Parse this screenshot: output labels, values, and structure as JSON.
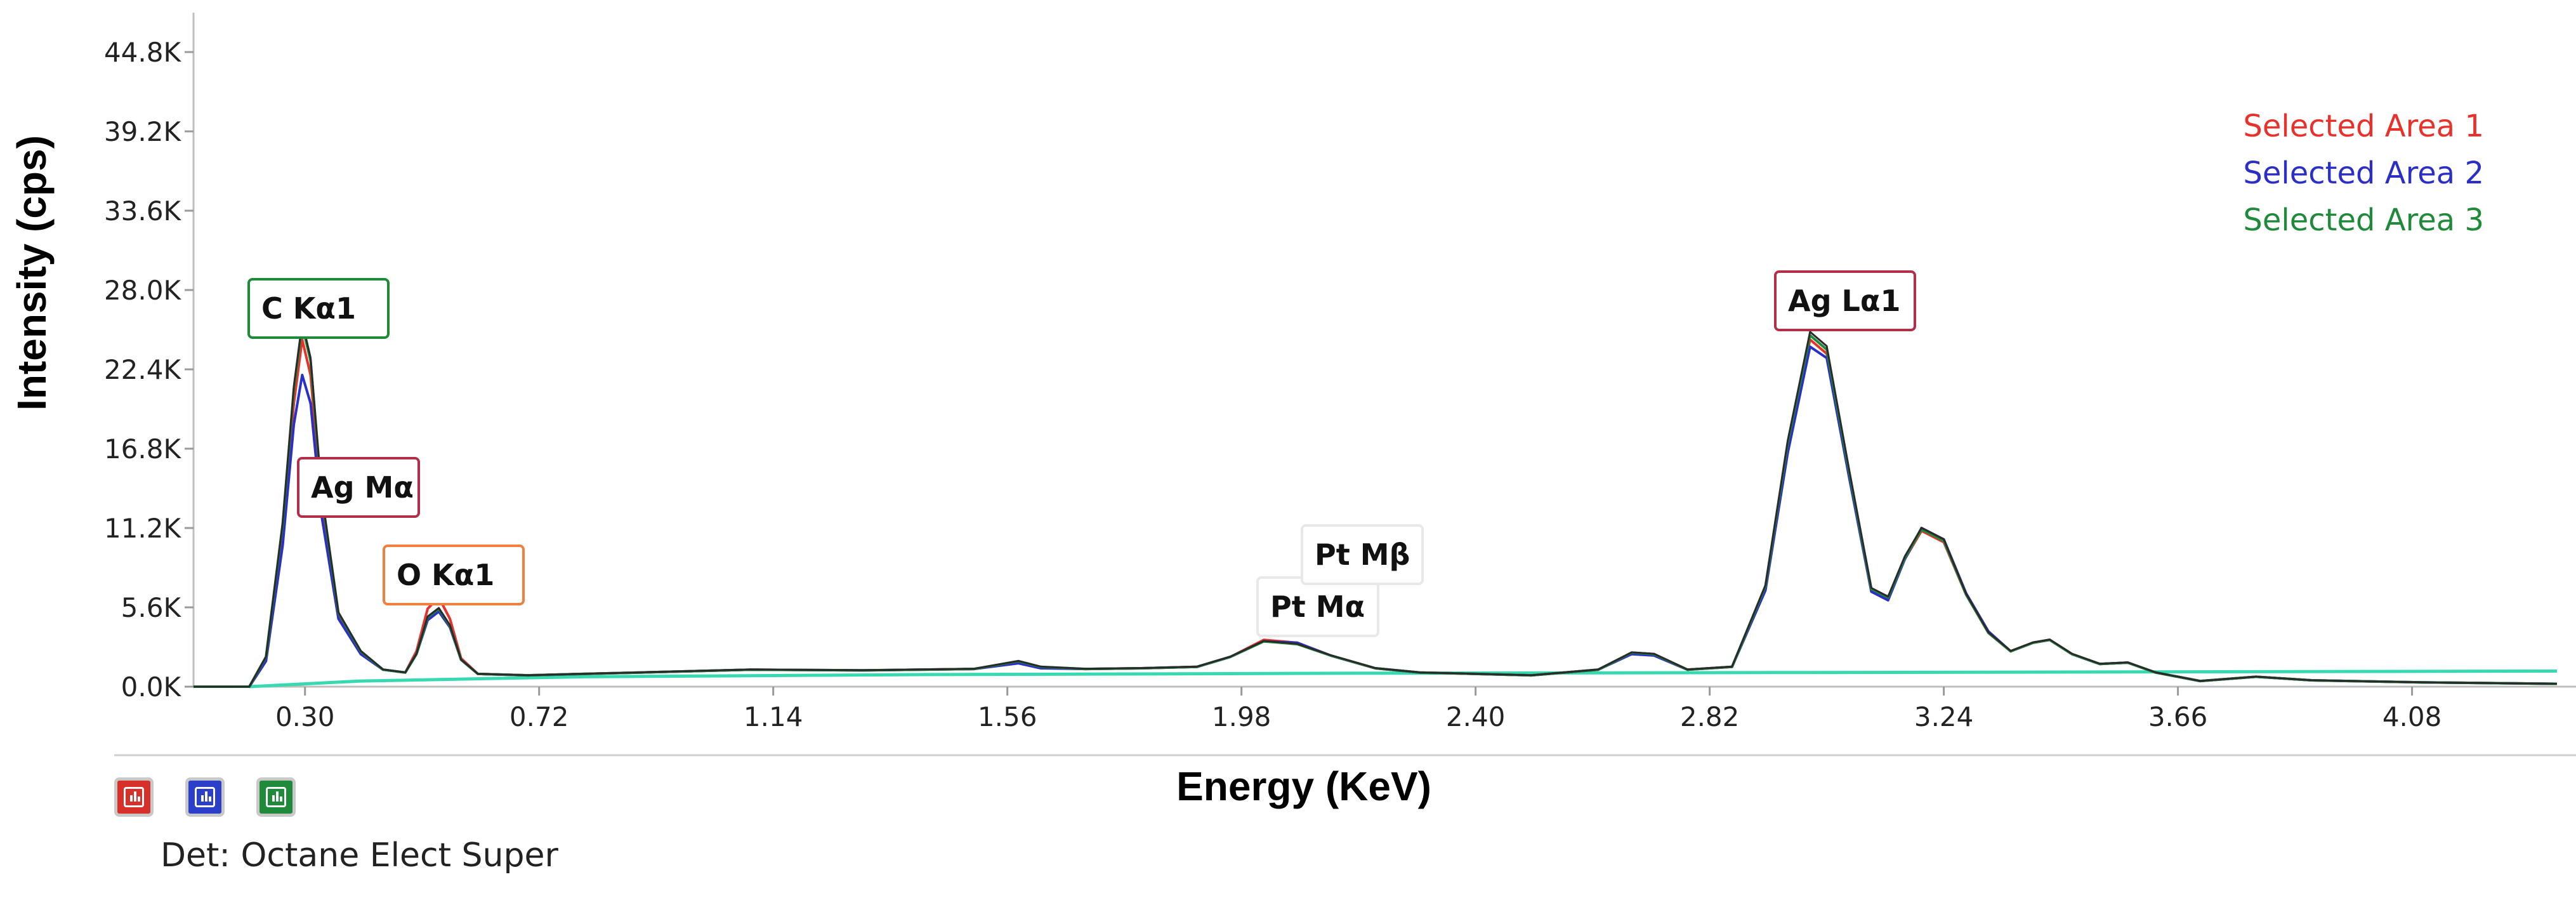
{
  "chart_data": {
    "type": "line",
    "title": "",
    "xlabel": "Energy (KeV)",
    "ylabel": "Intensity (cps)",
    "xlim": [
      0.1,
      4.34
    ],
    "ylim": [
      0,
      44800
    ],
    "x_ticks": [
      "0.30",
      "0.72",
      "1.14",
      "1.56",
      "1.98",
      "2.40",
      "2.82",
      "3.24",
      "3.66",
      "4.08"
    ],
    "y_ticks": [
      "0.0K",
      "5.6K",
      "11.2K",
      "16.8K",
      "22.4K",
      "28.0K",
      "33.6K",
      "39.2K",
      "44.8K"
    ],
    "legend": {
      "position": "top-right"
    },
    "series": [
      {
        "name": "Selected Area 1",
        "color": "#e8312b",
        "points": [
          [
            0.1,
            0
          ],
          [
            0.2,
            0
          ],
          [
            0.23,
            2000
          ],
          [
            0.26,
            11000
          ],
          [
            0.28,
            20000
          ],
          [
            0.295,
            24500
          ],
          [
            0.31,
            22000
          ],
          [
            0.33,
            13000
          ],
          [
            0.36,
            5000
          ],
          [
            0.4,
            2400
          ],
          [
            0.44,
            1200
          ],
          [
            0.48,
            1000
          ],
          [
            0.5,
            2500
          ],
          [
            0.52,
            5500
          ],
          [
            0.54,
            6300
          ],
          [
            0.56,
            4800
          ],
          [
            0.58,
            2000
          ],
          [
            0.61,
            900
          ],
          [
            0.7,
            800
          ],
          [
            0.9,
            1000
          ],
          [
            1.1,
            1200
          ],
          [
            1.3,
            1150
          ],
          [
            1.5,
            1250
          ],
          [
            1.58,
            1700
          ],
          [
            1.62,
            1350
          ],
          [
            1.7,
            1250
          ],
          [
            1.8,
            1300
          ],
          [
            1.9,
            1400
          ],
          [
            1.96,
            2100
          ],
          [
            2.02,
            3300
          ],
          [
            2.08,
            3100
          ],
          [
            2.14,
            2200
          ],
          [
            2.22,
            1300
          ],
          [
            2.3,
            1000
          ],
          [
            2.4,
            900
          ],
          [
            2.5,
            800
          ],
          [
            2.62,
            1200
          ],
          [
            2.68,
            2400
          ],
          [
            2.72,
            2300
          ],
          [
            2.78,
            1200
          ],
          [
            2.86,
            1400
          ],
          [
            2.92,
            7000
          ],
          [
            2.96,
            17000
          ],
          [
            3.0,
            24500
          ],
          [
            3.03,
            23500
          ],
          [
            3.07,
            15000
          ],
          [
            3.11,
            6800
          ],
          [
            3.14,
            6200
          ],
          [
            3.17,
            9000
          ],
          [
            3.2,
            11000
          ],
          [
            3.24,
            10200
          ],
          [
            3.28,
            6500
          ],
          [
            3.32,
            3800
          ],
          [
            3.36,
            2500
          ],
          [
            3.4,
            3100
          ],
          [
            3.43,
            3300
          ],
          [
            3.47,
            2300
          ],
          [
            3.52,
            1600
          ],
          [
            3.57,
            1700
          ],
          [
            3.62,
            1000
          ],
          [
            3.7,
            400
          ],
          [
            3.8,
            700
          ],
          [
            3.9,
            450
          ],
          [
            4.1,
            300
          ],
          [
            4.34,
            200
          ]
        ]
      },
      {
        "name": "Selected Area 2",
        "color": "#2b2fc8",
        "points": [
          [
            0.1,
            0
          ],
          [
            0.2,
            0
          ],
          [
            0.23,
            1800
          ],
          [
            0.26,
            10000
          ],
          [
            0.28,
            18500
          ],
          [
            0.295,
            22000
          ],
          [
            0.31,
            20000
          ],
          [
            0.33,
            12000
          ],
          [
            0.36,
            4800
          ],
          [
            0.4,
            2300
          ],
          [
            0.44,
            1200
          ],
          [
            0.48,
            1000
          ],
          [
            0.5,
            2300
          ],
          [
            0.52,
            4700
          ],
          [
            0.54,
            5300
          ],
          [
            0.56,
            4200
          ],
          [
            0.58,
            1900
          ],
          [
            0.61,
            900
          ],
          [
            0.7,
            800
          ],
          [
            0.9,
            1000
          ],
          [
            1.1,
            1200
          ],
          [
            1.3,
            1150
          ],
          [
            1.5,
            1250
          ],
          [
            1.58,
            1650
          ],
          [
            1.62,
            1300
          ],
          [
            1.7,
            1250
          ],
          [
            1.8,
            1300
          ],
          [
            1.9,
            1400
          ],
          [
            1.96,
            2100
          ],
          [
            2.02,
            3200
          ],
          [
            2.08,
            3100
          ],
          [
            2.14,
            2200
          ],
          [
            2.22,
            1300
          ],
          [
            2.3,
            1000
          ],
          [
            2.4,
            900
          ],
          [
            2.5,
            800
          ],
          [
            2.62,
            1200
          ],
          [
            2.68,
            2300
          ],
          [
            2.72,
            2200
          ],
          [
            2.78,
            1200
          ],
          [
            2.86,
            1400
          ],
          [
            2.92,
            6800
          ],
          [
            2.96,
            16500
          ],
          [
            3.0,
            24000
          ],
          [
            3.03,
            23200
          ],
          [
            3.07,
            14800
          ],
          [
            3.11,
            6700
          ],
          [
            3.14,
            6100
          ],
          [
            3.17,
            9000
          ],
          [
            3.2,
            11200
          ],
          [
            3.24,
            10400
          ],
          [
            3.28,
            6600
          ],
          [
            3.32,
            3900
          ],
          [
            3.36,
            2500
          ],
          [
            3.4,
            3100
          ],
          [
            3.43,
            3300
          ],
          [
            3.47,
            2300
          ],
          [
            3.52,
            1600
          ],
          [
            3.57,
            1700
          ],
          [
            3.62,
            1000
          ],
          [
            3.7,
            400
          ],
          [
            3.8,
            700
          ],
          [
            3.9,
            450
          ],
          [
            4.1,
            300
          ],
          [
            4.34,
            200
          ]
        ]
      },
      {
        "name": "Selected Area 3",
        "color": "#1f8a3a",
        "points": [
          [
            0.1,
            0
          ],
          [
            0.2,
            0
          ],
          [
            0.23,
            2100
          ],
          [
            0.26,
            11500
          ],
          [
            0.28,
            21000
          ],
          [
            0.295,
            25500
          ],
          [
            0.31,
            23000
          ],
          [
            0.33,
            13500
          ],
          [
            0.36,
            5200
          ],
          [
            0.4,
            2500
          ],
          [
            0.44,
            1200
          ],
          [
            0.48,
            1000
          ],
          [
            0.5,
            2300
          ],
          [
            0.52,
            4900
          ],
          [
            0.54,
            5500
          ],
          [
            0.56,
            4300
          ],
          [
            0.58,
            1900
          ],
          [
            0.61,
            900
          ],
          [
            0.7,
            800
          ],
          [
            0.9,
            1000
          ],
          [
            1.1,
            1200
          ],
          [
            1.3,
            1150
          ],
          [
            1.5,
            1250
          ],
          [
            1.58,
            1800
          ],
          [
            1.62,
            1400
          ],
          [
            1.7,
            1250
          ],
          [
            1.8,
            1300
          ],
          [
            1.9,
            1400
          ],
          [
            1.96,
            2100
          ],
          [
            2.02,
            3200
          ],
          [
            2.08,
            3000
          ],
          [
            2.14,
            2200
          ],
          [
            2.22,
            1300
          ],
          [
            2.3,
            1000
          ],
          [
            2.4,
            900
          ],
          [
            2.5,
            800
          ],
          [
            2.62,
            1200
          ],
          [
            2.68,
            2400
          ],
          [
            2.72,
            2300
          ],
          [
            2.78,
            1200
          ],
          [
            2.86,
            1400
          ],
          [
            2.92,
            7100
          ],
          [
            2.96,
            17200
          ],
          [
            3.0,
            24800
          ],
          [
            3.03,
            23800
          ],
          [
            3.07,
            15200
          ],
          [
            3.11,
            6900
          ],
          [
            3.14,
            6300
          ],
          [
            3.17,
            9100
          ],
          [
            3.2,
            11100
          ],
          [
            3.24,
            10300
          ],
          [
            3.28,
            6500
          ],
          [
            3.32,
            3800
          ],
          [
            3.36,
            2500
          ],
          [
            3.4,
            3100
          ],
          [
            3.43,
            3300
          ],
          [
            3.47,
            2300
          ],
          [
            3.52,
            1600
          ],
          [
            3.57,
            1700
          ],
          [
            3.62,
            1000
          ],
          [
            3.7,
            400
          ],
          [
            3.8,
            700
          ],
          [
            3.9,
            450
          ],
          [
            4.1,
            300
          ],
          [
            4.34,
            200
          ]
        ]
      }
    ],
    "annotations": [
      {
        "text": "C  Kα1",
        "x": 0.28,
        "y": 25500,
        "border": "#1f8a3a"
      },
      {
        "text": "Ag Mα",
        "x": 0.37,
        "y": 13000,
        "border": "#b0304a"
      },
      {
        "text": "O  Kα1",
        "x": 0.54,
        "y": 6300,
        "border": "#f08040"
      },
      {
        "text": "Pt Mα",
        "x": 2.02,
        "y": 3300,
        "border": "#e8e8e8"
      },
      {
        "text": "Pt Mβ",
        "x": 2.08,
        "y": 7000,
        "border": "#e8e8e8"
      },
      {
        "text": "Ag Lα1",
        "x": 3.0,
        "y": 24500,
        "border": "#b0304a"
      }
    ]
  },
  "toolbar": {
    "buttons": [
      {
        "color": "#d7302a",
        "icon": "spectrum-icon"
      },
      {
        "color": "#2b3fc8",
        "icon": "spectrum-icon"
      },
      {
        "color": "#1f8a3a",
        "icon": "spectrum-icon"
      }
    ]
  },
  "footer": {
    "detector": "Det: Octane Elect Super"
  }
}
